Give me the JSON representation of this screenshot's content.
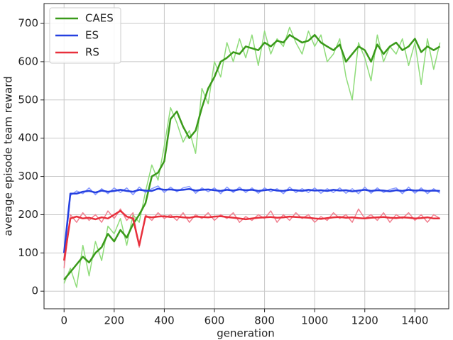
{
  "chart_data": {
    "type": "line",
    "xlabel": "generation",
    "ylabel": "average episode team reward",
    "x": [
      0,
      25,
      50,
      75,
      100,
      125,
      150,
      175,
      200,
      225,
      250,
      275,
      300,
      325,
      350,
      375,
      400,
      425,
      450,
      475,
      500,
      525,
      550,
      575,
      600,
      625,
      650,
      675,
      700,
      725,
      750,
      775,
      800,
      825,
      850,
      875,
      900,
      925,
      950,
      975,
      1000,
      1025,
      1050,
      1075,
      1100,
      1125,
      1150,
      1175,
      1200,
      1225,
      1250,
      1275,
      1300,
      1325,
      1350,
      1375,
      1400,
      1425,
      1450,
      1475,
      1500
    ],
    "series": [
      {
        "color": "#8fdc7a",
        "width": 1.5,
        "values": [
          20,
          60,
          10,
          120,
          40,
          130,
          80,
          170,
          150,
          190,
          120,
          200,
          180,
          260,
          330,
          290,
          380,
          480,
          440,
          390,
          420,
          360,
          530,
          490,
          600,
          560,
          650,
          600,
          660,
          610,
          670,
          590,
          680,
          620,
          660,
          640,
          690,
          650,
          620,
          680,
          640,
          670,
          600,
          620,
          660,
          560,
          500,
          650,
          610,
          550,
          670,
          600,
          640,
          620,
          660,
          590,
          650,
          540,
          660,
          580,
          650
        ]
      },
      {
        "color": "#8899ff",
        "width": 1.5,
        "values": [
          80,
          250,
          262,
          255,
          270,
          252,
          268,
          255,
          270,
          258,
          270,
          252,
          272,
          258,
          268,
          275,
          258,
          272,
          260,
          270,
          274,
          256,
          270,
          260,
          270,
          255,
          272,
          258,
          272,
          258,
          270,
          256,
          270,
          260,
          268,
          255,
          272,
          258,
          268,
          258,
          270,
          256,
          268,
          258,
          270,
          256,
          268,
          255,
          272,
          256,
          270,
          258,
          266,
          270,
          255,
          272,
          256,
          270,
          255,
          268,
          256
        ]
      },
      {
        "color": "#f08090",
        "width": 1.5,
        "values": [
          60,
          200,
          180,
          205,
          185,
          200,
          180,
          210,
          190,
          215,
          185,
          205,
          115,
          200,
          185,
          205,
          190,
          200,
          185,
          205,
          180,
          200,
          190,
          205,
          185,
          200,
          190,
          205,
          180,
          195,
          185,
          200,
          190,
          210,
          180,
          200,
          185,
          205,
          190,
          200,
          180,
          195,
          185,
          205,
          190,
          200,
          180,
          215,
          190,
          200,
          185,
          205,
          180,
          200,
          190,
          205,
          185,
          200,
          180,
          200,
          190
        ]
      },
      {
        "name": "CAES",
        "color": "#3a9a1a",
        "width": 2.5,
        "values": [
          30,
          50,
          70,
          90,
          75,
          100,
          115,
          150,
          130,
          160,
          140,
          175,
          200,
          230,
          300,
          310,
          340,
          450,
          470,
          430,
          400,
          420,
          480,
          530,
          560,
          600,
          610,
          625,
          620,
          640,
          635,
          630,
          650,
          640,
          655,
          650,
          670,
          660,
          650,
          655,
          670,
          650,
          640,
          630,
          645,
          600,
          620,
          640,
          630,
          600,
          645,
          620,
          640,
          650,
          630,
          640,
          660,
          625,
          640,
          630,
          640
        ]
      },
      {
        "name": "ES",
        "color": "#2540e0",
        "width": 2.5,
        "values": [
          100,
          255,
          255,
          260,
          262,
          258,
          263,
          260,
          262,
          265,
          262,
          260,
          265,
          263,
          262,
          268,
          265,
          266,
          264,
          265,
          267,
          263,
          265,
          266,
          264,
          262,
          265,
          263,
          266,
          264,
          265,
          262,
          264,
          266,
          263,
          262,
          265,
          264,
          262,
          265,
          263,
          264,
          262,
          265,
          263,
          264,
          261,
          263,
          265,
          262,
          264,
          263,
          261,
          264,
          262,
          265,
          263,
          264,
          262,
          263,
          262
        ]
      },
      {
        "name": "RS",
        "color": "#e8303c",
        "width": 2.5,
        "values": [
          80,
          190,
          195,
          190,
          192,
          188,
          193,
          190,
          200,
          210,
          195,
          190,
          120,
          195,
          193,
          195,
          196,
          194,
          195,
          193,
          192,
          195,
          194,
          193,
          195,
          196,
          194,
          192,
          190,
          188,
          190,
          192,
          193,
          194,
          192,
          193,
          195,
          194,
          193,
          192,
          190,
          189,
          191,
          193,
          194,
          192,
          193,
          191,
          190,
          192,
          193,
          194,
          192,
          191,
          193,
          192,
          190,
          191,
          193,
          190,
          190
        ]
      }
    ],
    "xlim": [
      -80,
      1535
    ],
    "ylim": [
      -46,
      752
    ],
    "xticks": [
      0,
      200,
      400,
      600,
      800,
      1000,
      1200,
      1400
    ],
    "yticks": [
      0,
      100,
      200,
      300,
      400,
      500,
      600,
      700
    ],
    "grid": true,
    "legend": "upper left"
  }
}
